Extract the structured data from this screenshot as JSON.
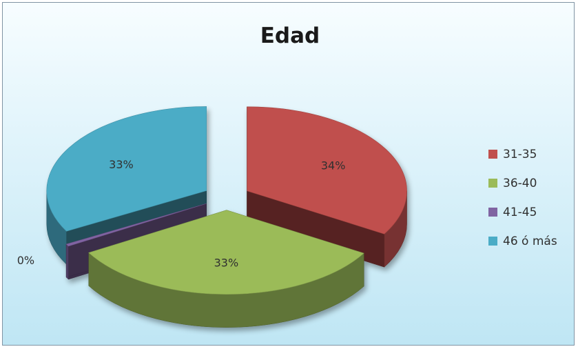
{
  "chart_data": {
    "type": "pie",
    "style": "3d-exploded",
    "title": "Edad",
    "categories": [
      "31-35",
      "36-40",
      "41-45",
      "46 ó más"
    ],
    "values": [
      34,
      33,
      0,
      33
    ],
    "data_labels": [
      "34%",
      "33%",
      "0%",
      "33%"
    ],
    "colors": [
      "#c0504d",
      "#9bbb59",
      "#8064a2",
      "#4bacc6"
    ],
    "legend_position": "right"
  }
}
